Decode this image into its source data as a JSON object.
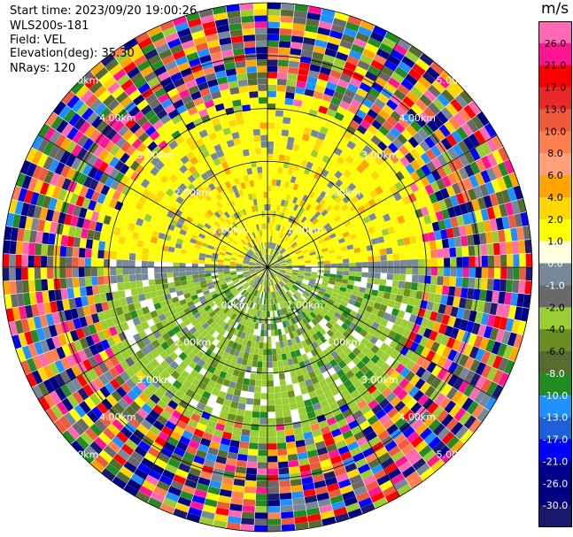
{
  "header": {
    "start_time": "Start time: 2023/09/20 19:00:26",
    "instrument": "WLS200s-181",
    "field": "Field: VEL",
    "elevation": "Elevation(deg): 35.30",
    "nrays": "NRays: 120"
  },
  "chart_data": {
    "type": "heatmap",
    "projection": "polar PPI",
    "field": "VEL",
    "nrays": 120,
    "elevation_deg": 35.3,
    "range_rings_km": [
      1.0,
      2.0,
      3.0,
      4.0,
      5.0
    ],
    "ring_labels": [
      "1.00km",
      "2.00km",
      "3.00km",
      "4.00km",
      "5.00km"
    ],
    "colorbar": {
      "unit": "m/s",
      "range": [
        -30.0,
        30.0
      ],
      "ticks": [
        "26.0",
        "21.0",
        "17.0",
        "13.0",
        "10.0",
        "8.0",
        "6.0",
        "4.0",
        "2.0",
        "1.0",
        "0.0",
        "-1.0",
        "-2.0",
        "-4.0",
        "-6.0",
        "-8.0",
        "-10.0",
        "-13.0",
        "-17.0",
        "-21.0",
        "-26.0",
        "-30.0"
      ],
      "colors": [
        "#ff69b4",
        "#ff1493",
        "#ff0000",
        "#e8282a",
        "#f05a3c",
        "#ff7f50",
        "#ffa07a",
        "#ffa500",
        "#ffd700",
        "#ffff00",
        "#ffffe0",
        "#778899",
        "#696969",
        "#9acd32",
        "#6b8e23",
        "#556b2f",
        "#228b22",
        "#1e90ff",
        "#1c5fd6",
        "#0000ff",
        "#00008b",
        "#000080",
        "#191970"
      ]
    }
  }
}
